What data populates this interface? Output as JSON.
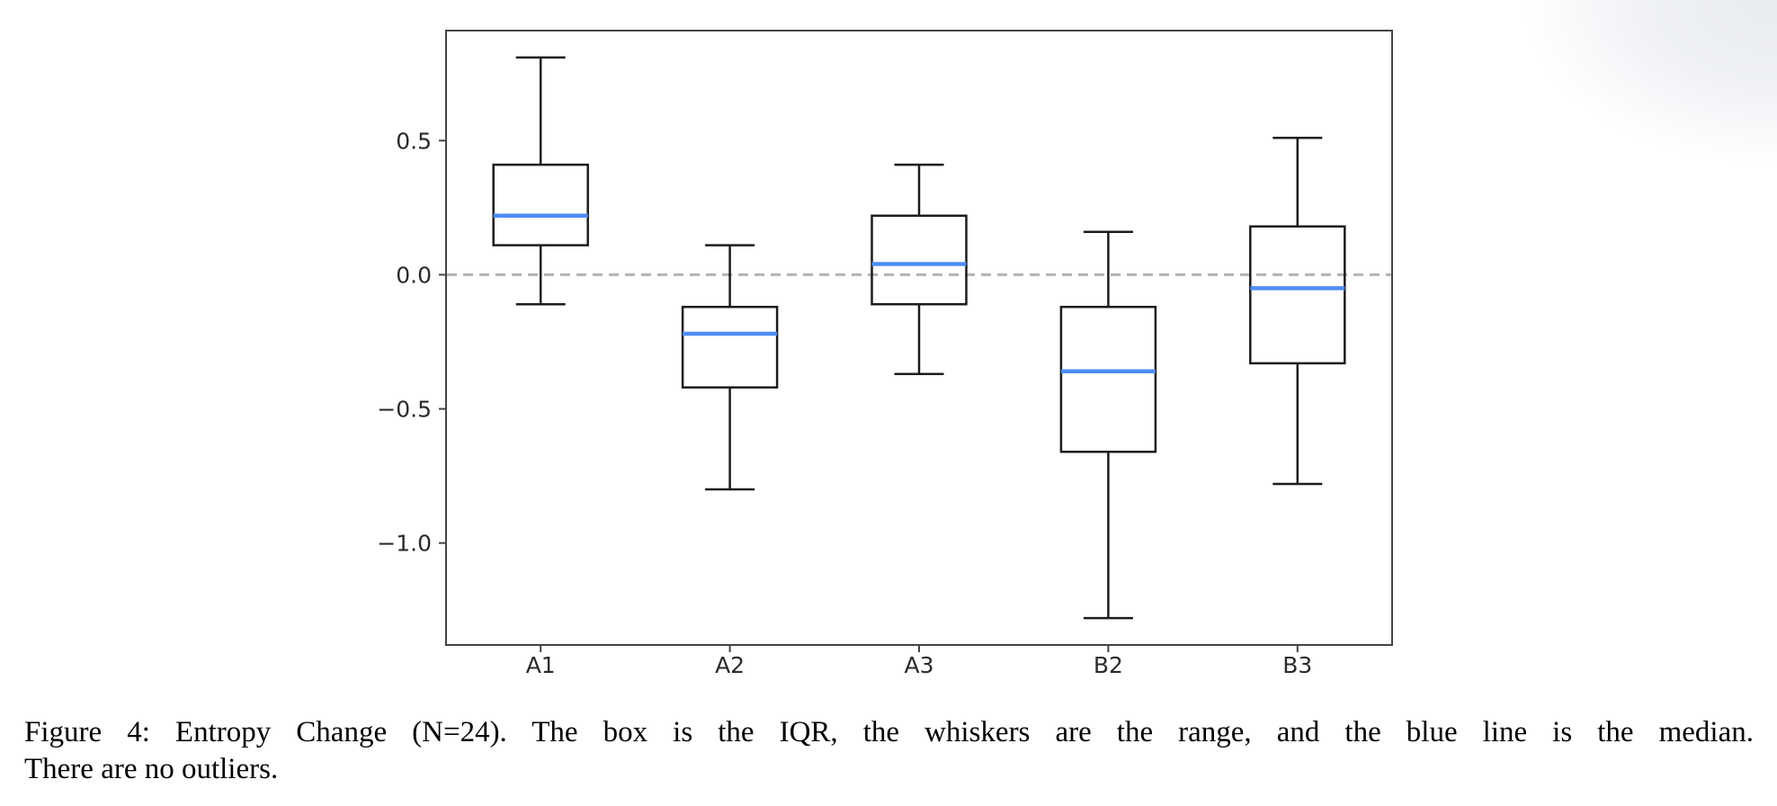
{
  "figure": {
    "caption_line1": "Figure 4: Entropy Change (N=24). The box is the IQR, the whiskers are the range, and the blue line is the median.",
    "caption_line2": "There are no outliers."
  },
  "chart_data": {
    "type": "boxplot",
    "title": "",
    "xlabel": "",
    "ylabel": "",
    "categories": [
      "A1",
      "A2",
      "A3",
      "B2",
      "B3"
    ],
    "series": [
      {
        "name": "A1",
        "min": -0.11,
        "q1": 0.11,
        "median": 0.22,
        "q3": 0.41,
        "max": 0.81
      },
      {
        "name": "A2",
        "min": -0.8,
        "q1": -0.42,
        "median": -0.22,
        "q3": -0.12,
        "max": 0.11
      },
      {
        "name": "A3",
        "min": -0.37,
        "q1": -0.11,
        "median": 0.04,
        "q3": 0.22,
        "max": 0.41
      },
      {
        "name": "B2",
        "min": -1.28,
        "q1": -0.66,
        "median": -0.36,
        "q3": -0.12,
        "max": 0.16
      },
      {
        "name": "B3",
        "min": -0.78,
        "q1": -0.33,
        "median": -0.05,
        "q3": 0.18,
        "max": 0.51
      }
    ],
    "ylim": [
      -1.38,
      0.91
    ],
    "yticks": [
      0.5,
      0.0,
      -0.5,
      -1.0
    ],
    "ytick_labels": [
      "0.5",
      "0.0",
      "−0.5",
      "−1.0"
    ],
    "reference_line": {
      "value": 0.0,
      "style": "dashed"
    },
    "grid": false,
    "legend": "none",
    "outliers": "none",
    "colors": {
      "median_line": "#4d8df4",
      "box_line": "#1c1c1c",
      "whisker_line": "#1c1c1c",
      "reference_dash": "#b3b3b3",
      "spine": "#444444",
      "tick_label": "#2b2b2b",
      "background": "#ffffff"
    }
  }
}
